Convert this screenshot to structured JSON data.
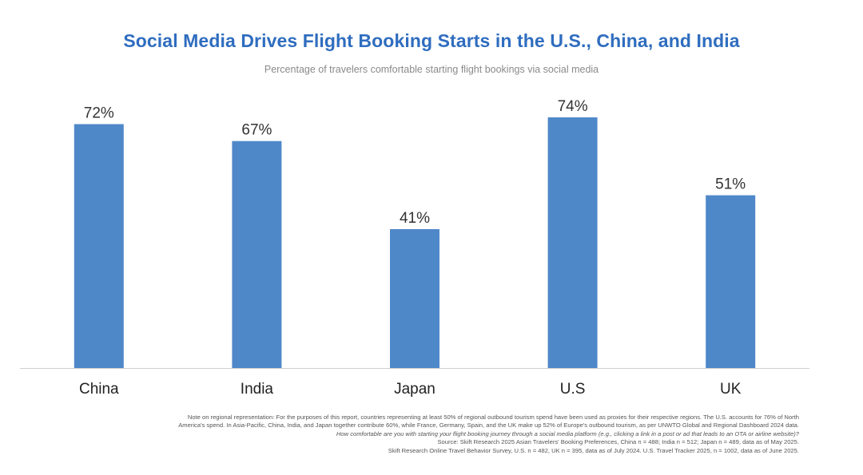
{
  "chart_data": {
    "type": "bar",
    "title": "Social Media Drives Flight Booking Starts in the U.S., China, and India",
    "subtitle": "Percentage of travelers comfortable starting flight bookings via social media",
    "categories": [
      "China",
      "India",
      "Japan",
      "U.S",
      "UK"
    ],
    "values": [
      72,
      67,
      41,
      74,
      51
    ],
    "data_labels": [
      "72%",
      "67%",
      "41%",
      "74%",
      "51%"
    ],
    "xlabel": "",
    "ylabel": "",
    "ylim": [
      0,
      80
    ],
    "grid": false,
    "bar_color": "#4f88c9",
    "title_color": "#2f6dbf"
  },
  "notes": {
    "line1": "Note on regional representation: For the purposes of this report, countries representing at least 50% of regional outbound tourism spend have been used as proxies for their respective regions. The U.S. accounts for 76% of North",
    "line2": "America's spend. In Asia-Pacific, China, India, and Japan together contribute 60%, while France, Germany, Spain, and the UK make up 52% of Europe's outbound tourism, as per UNWTO Global and Regional Dashboard 2024 data.",
    "question": "How comfortable are you with starting your flight booking journey through a social media platform (e.g., clicking a link in a post or ad that leads to an OTA or airline website)?",
    "source1": "Source: Skift Research 2025 Asian Travelers' Booking Preferences, China n = 488; India n = 512; Japan n = 489, data as of May 2025.",
    "source2": "Skift Research Online Travel Behavior Survey, U.S. n = 482, UK n = 395, data as of July 2024. U.S. Travel Tracker 2025, n = 1002, data as of June 2025."
  }
}
